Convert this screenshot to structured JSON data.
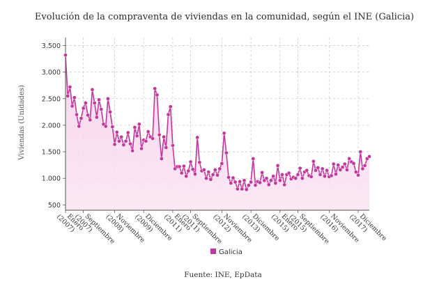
{
  "chart_data": {
    "type": "area",
    "title": "Evolución de la compraventa de viviendas en la comunidad, según el INE (Galicia)",
    "ylabel": "Viviendas (Unidades)",
    "xlabel": "",
    "ylim": [
      400,
      3650
    ],
    "yticks": [
      {
        "value": 500,
        "label": "500"
      },
      {
        "value": 1000,
        "label": "1.000"
      },
      {
        "value": 1500,
        "label": "1.500"
      },
      {
        "value": 2000,
        "label": "2.000"
      },
      {
        "value": 2500,
        "label": "2.500"
      },
      {
        "value": 3000,
        "label": "3.000"
      },
      {
        "value": 3500,
        "label": "3.500"
      }
    ],
    "xticks": [
      {
        "label": "Enero (2007)",
        "date": "2007-01"
      },
      {
        "label": "Septiembre (2007)",
        "date": "2007-09"
      },
      {
        "label": "Noviembre (2008)",
        "date": "2008-11"
      },
      {
        "label": "Diciembre (2009)",
        "date": "2009-12"
      },
      {
        "label": "Enero (2011)",
        "date": "2011-01"
      },
      {
        "label": "Septiembre (2011)",
        "date": "2011-09"
      },
      {
        "label": "Noviembre (2012)",
        "date": "2012-11"
      },
      {
        "label": "Diciembre (2013)",
        "date": "2013-12"
      },
      {
        "label": "Enero (2015)",
        "date": "2015-01"
      },
      {
        "label": "Septiembre (2015)",
        "date": "2015-09"
      },
      {
        "label": "Noviembre (2016)",
        "date": "2016-11"
      },
      {
        "label": "Diciembre (2017)",
        "date": "2017-12"
      }
    ],
    "grid": true,
    "legend_position": "bottom-center",
    "series": [
      {
        "name": "Galicia",
        "color": "#c2379c",
        "start": "2007-01",
        "values": [
          3320,
          2550,
          2720,
          2360,
          2520,
          2200,
          1980,
          2130,
          2320,
          2420,
          2190,
          2100,
          2670,
          2420,
          2150,
          2480,
          2300,
          2020,
          1980,
          2500,
          2250,
          1970,
          1640,
          1870,
          1700,
          1780,
          1630,
          1700,
          1860,
          1650,
          1520,
          1960,
          1800,
          2020,
          1560,
          1720,
          1700,
          1880,
          1780,
          1750,
          2690,
          2570,
          1820,
          1370,
          1780,
          1580,
          2200,
          2350,
          1620,
          1180,
          1220,
          1220,
          1100,
          1230,
          1040,
          1140,
          1310,
          1170,
          1080,
          1770,
          1300,
          1140,
          1160,
          1000,
          1120,
          980,
          1070,
          1160,
          1060,
          1180,
          1280,
          1850,
          1480,
          1020,
          910,
          1010,
          930,
          800,
          940,
          800,
          960,
          790,
          870,
          930,
          1370,
          870,
          940,
          920,
          1110,
          960,
          1000,
          880,
          960,
          1040,
          910,
          1240,
          960,
          1070,
          880,
          1070,
          1100,
          990,
          1020,
          1000,
          1070,
          1190,
          1000,
          1120,
          1150,
          1050,
          1030,
          1320,
          1150,
          1200,
          1070,
          1180,
          1040,
          1150,
          1030,
          1050,
          1270,
          1080,
          1250,
          1160,
          1210,
          1270,
          1160,
          1370,
          1310,
          1280,
          1120,
          1060,
          1500,
          1180,
          1240,
          1370,
          1410
        ]
      }
    ]
  },
  "source": "Fuente: INE, EpData"
}
